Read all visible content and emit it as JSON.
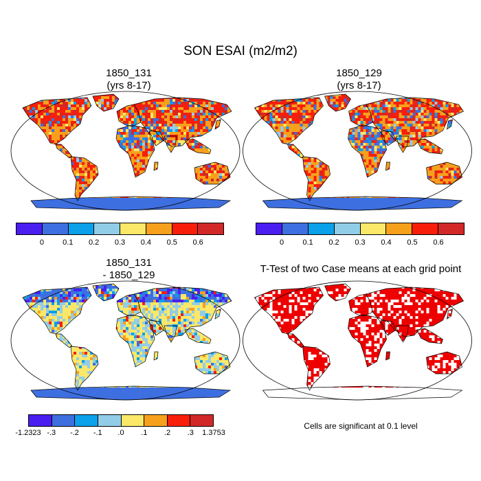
{
  "title": "SON ESAI (m2/m2)",
  "panels": [
    {
      "title_line1": "1850_131",
      "title_line2": "(yrs 8-17)"
    },
    {
      "title_line1": "1850_129",
      "title_line2": "(yrs 8-17)"
    },
    {
      "title_line1": "1850_131",
      "title_line2": "- 1850_129"
    },
    {
      "title_line1": "T-Test of two Case means at each grid point"
    }
  ],
  "colorbar_top": {
    "colors": [
      "#4a1ef0",
      "#3e6fe0",
      "#0aa0ea",
      "#92cde8",
      "#fbe869",
      "#f7a01c",
      "#f81e0a",
      "#d22828"
    ],
    "labels": [
      "0",
      "0.1",
      "0.2",
      "0.3",
      "0.4",
      "0.5",
      "0.6"
    ]
  },
  "colorbar_diff": {
    "colors": [
      "#4a1ef0",
      "#3e6fe0",
      "#0aa0ea",
      "#92cde8",
      "#fbe869",
      "#f7a01c",
      "#f81e0a",
      "#d22828"
    ],
    "labels": [
      "-1.2323",
      "-.3",
      "-.2",
      "-.1",
      ".0",
      ".1",
      ".2",
      ".3",
      "1.3753"
    ]
  },
  "significance_color": "#ee0000",
  "note": "Cells are significant at 0.1 level"
}
